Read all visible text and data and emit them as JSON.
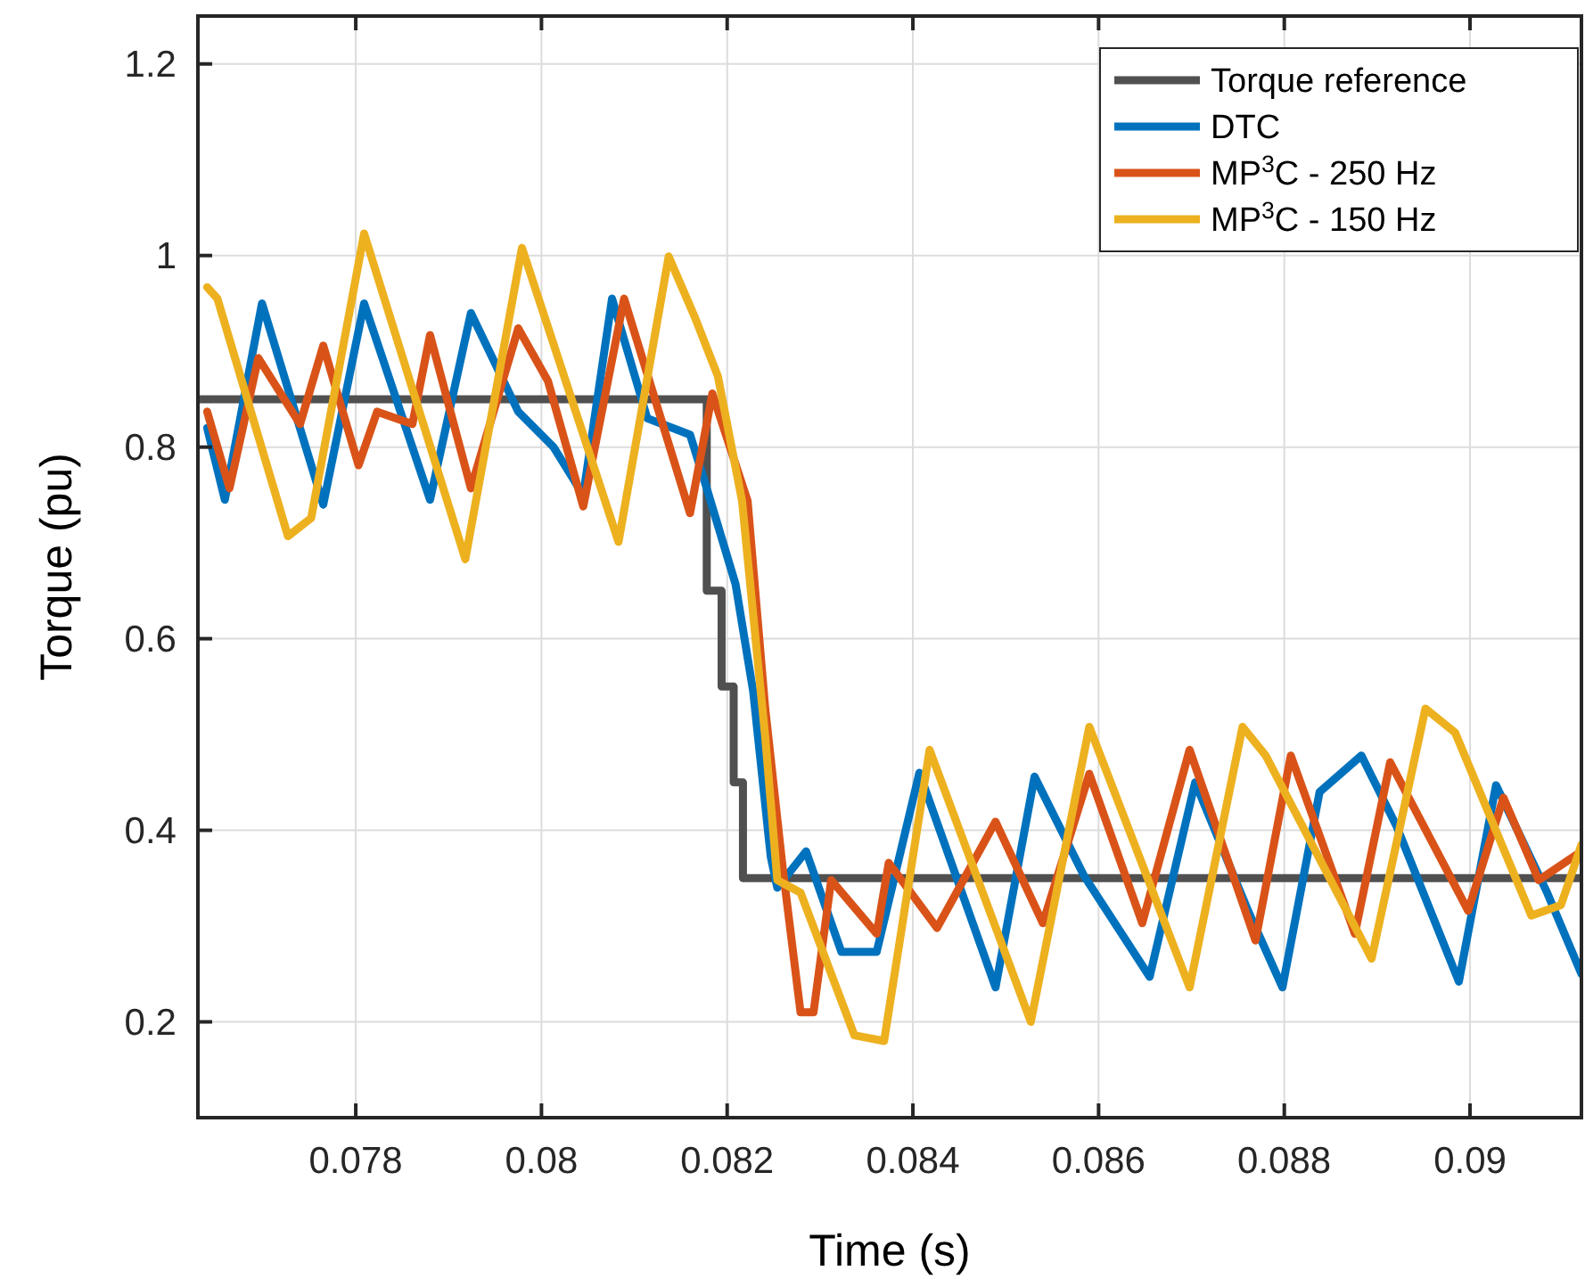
{
  "chart_data": {
    "type": "line",
    "xlabel": "Time (s)",
    "ylabel": "Torque (pu)",
    "xlim": [
      0.0763,
      0.0912
    ],
    "ylim": [
      0.1,
      1.25
    ],
    "xticks": [
      0.078,
      0.08,
      0.082,
      0.084,
      0.086,
      0.088,
      0.09
    ],
    "yticks": [
      0.2,
      0.4,
      0.6,
      0.8,
      1,
      1.2
    ],
    "grid": true,
    "legend": "top right",
    "line_style": "solid",
    "marker": "none",
    "series": [
      {
        "name": "Torque reference",
        "type": "step",
        "color": "#505050",
        "x": [
          0.0763,
          0.08178,
          0.08194,
          0.08207,
          0.08217,
          0.0912
        ],
        "values": [
          0.85,
          0.65,
          0.55,
          0.45,
          0.35,
          0.35
        ]
      },
      {
        "name": "DTC",
        "color": "#0072bd",
        "x": [
          0.0764,
          0.07659,
          0.07699,
          0.07765,
          0.07809,
          0.0788,
          0.07924,
          0.07975,
          0.08013,
          0.08045,
          0.08076,
          0.08114,
          0.0816,
          0.08178,
          0.08209,
          0.08228,
          0.08247,
          0.08254,
          0.08285,
          0.08323,
          0.08361,
          0.08407,
          0.08489,
          0.08531,
          0.08584,
          0.08655,
          0.08704,
          0.08761,
          0.08798,
          0.08838,
          0.08883,
          0.08921,
          0.08988,
          0.09028,
          0.09083,
          0.0912
        ],
        "values": [
          0.82,
          0.745,
          0.95,
          0.74,
          0.95,
          0.745,
          0.94,
          0.837,
          0.8,
          0.75,
          0.955,
          0.83,
          0.813,
          0.757,
          0.657,
          0.545,
          0.372,
          0.34,
          0.378,
          0.273,
          0.273,
          0.46,
          0.236,
          0.456,
          0.353,
          0.247,
          0.45,
          0.316,
          0.236,
          0.44,
          0.478,
          0.404,
          0.242,
          0.447,
          0.335,
          0.25
        ]
      },
      {
        "name": "MP$^{3}$C - 250 Hz",
        "color": "#d95319",
        "x": [
          0.0764,
          0.07664,
          0.07695,
          0.0774,
          0.07765,
          0.07803,
          0.07823,
          0.07861,
          0.0788,
          0.07924,
          0.07975,
          0.08007,
          0.08045,
          0.08089,
          0.0816,
          0.08184,
          0.08222,
          0.08241,
          0.0826,
          0.08279,
          0.08293,
          0.08312,
          0.08361,
          0.08374,
          0.08426,
          0.08489,
          0.0854,
          0.0859,
          0.08647,
          0.08698,
          0.08769,
          0.08807,
          0.08876,
          0.08914,
          0.08998,
          0.09036,
          0.09074,
          0.0912
        ],
        "values": [
          0.837,
          0.757,
          0.893,
          0.824,
          0.906,
          0.781,
          0.837,
          0.824,
          0.917,
          0.757,
          0.924,
          0.869,
          0.738,
          0.955,
          0.731,
          0.856,
          0.744,
          0.527,
          0.359,
          0.21,
          0.21,
          0.348,
          0.292,
          0.366,
          0.298,
          0.409,
          0.303,
          0.459,
          0.303,
          0.484,
          0.285,
          0.478,
          0.292,
          0.471,
          0.316,
          0.434,
          0.348,
          0.378
        ]
      },
      {
        "name": "MP$^{3}$C - 150 Hz",
        "color": "#edb120",
        "x": [
          0.0764,
          0.07651,
          0.07727,
          0.07752,
          0.07809,
          0.07918,
          0.07979,
          0.08083,
          0.08137,
          0.08165,
          0.0819,
          0.08216,
          0.08241,
          0.08254,
          0.08279,
          0.08337,
          0.08369,
          0.08418,
          0.08527,
          0.0859,
          0.08698,
          0.08755,
          0.0878,
          0.08894,
          0.08952,
          0.08984,
          0.09066,
          0.09098,
          0.0912
        ],
        "values": [
          0.967,
          0.955,
          0.707,
          0.726,
          1.023,
          0.683,
          1.008,
          0.701,
          0.999,
          0.936,
          0.874,
          0.744,
          0.497,
          0.348,
          0.335,
          0.186,
          0.18,
          0.484,
          0.2,
          0.508,
          0.236,
          0.508,
          0.478,
          0.266,
          0.527,
          0.502,
          0.311,
          0.322,
          0.385
        ]
      }
    ]
  }
}
